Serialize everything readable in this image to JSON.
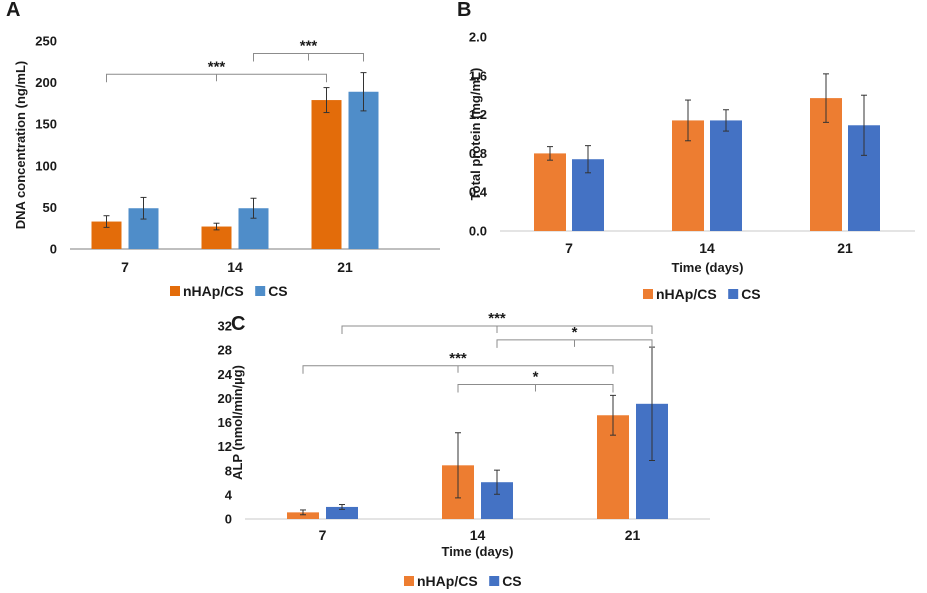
{
  "chart_data": [
    {
      "panel": "A",
      "type": "bar",
      "title": "",
      "xlabel": "",
      "ylabel": "DNA concentration (ng/mL)",
      "ylim": [
        0,
        250
      ],
      "yticks": [
        "0",
        "50",
        "100",
        "150",
        "200",
        "250"
      ],
      "categories": [
        "7",
        "14",
        "21"
      ],
      "grid": false,
      "legend_position": "bottom",
      "series": [
        {
          "name": "nHAp/CS",
          "color": "#E36C0A",
          "values": [
            33,
            27,
            179
          ],
          "errors": [
            7,
            4,
            15
          ]
        },
        {
          "name": "CS",
          "color": "#4F8DC9",
          "values": [
            49,
            49,
            189
          ],
          "errors": [
            13,
            12,
            23
          ]
        }
      ],
      "annotations": [
        {
          "text": "***",
          "from": "14-CS",
          "to": "21-CS",
          "level": 235
        },
        {
          "text": "***",
          "from": "7-nHAp/CS",
          "to": "21-nHAp/CS",
          "level": 210
        }
      ]
    },
    {
      "panel": "B",
      "type": "bar",
      "title": "",
      "xlabel": "Time (days)",
      "ylabel": "Total protein (mg/mL)",
      "ylim": [
        0,
        2.0
      ],
      "yticks": [
        "0.0",
        "0.4",
        "0.8",
        "1.2",
        "1.6",
        "2.0"
      ],
      "categories": [
        "7",
        "14",
        "21"
      ],
      "grid": false,
      "legend_position": "bottom",
      "series": [
        {
          "name": "nHAp/CS",
          "color": "#ED7D31",
          "values": [
            0.8,
            1.14,
            1.37
          ],
          "errors": [
            0.07,
            0.21,
            0.25
          ]
        },
        {
          "name": "CS",
          "color": "#4472C4",
          "values": [
            0.74,
            1.14,
            1.09
          ],
          "errors": [
            0.14,
            0.11,
            0.31
          ]
        }
      ],
      "annotations": []
    },
    {
      "panel": "C",
      "type": "bar",
      "title": "",
      "xlabel": "Time (days)",
      "ylabel": "ALP (nmol/min/µg)",
      "ylim": [
        0,
        32
      ],
      "yticks": [
        "0",
        "4",
        "8",
        "12",
        "16",
        "20",
        "24",
        "28",
        "32"
      ],
      "categories": [
        "7",
        "14",
        "21"
      ],
      "grid": false,
      "legend_position": "bottom",
      "series": [
        {
          "name": "nHAp/CS",
          "color": "#ED7D31",
          "values": [
            1.1,
            8.9,
            17.2
          ],
          "errors": [
            0.4,
            5.4,
            3.3
          ]
        },
        {
          "name": "CS",
          "color": "#4472C4",
          "values": [
            2.0,
            6.1,
            19.1
          ],
          "errors": [
            0.4,
            2.0,
            9.4
          ]
        }
      ],
      "annotations": [
        {
          "text": "***",
          "from": "7-CS",
          "to": "21-CS",
          "level": 32
        },
        {
          "text": "*",
          "from": "14-CS",
          "to": "21-CS",
          "level": 29.7
        },
        {
          "text": "***",
          "from": "7-nHAp/CS",
          "to": "21-nHAp/CS",
          "level": 25.4
        },
        {
          "text": "*",
          "from": "14-nHAp/CS",
          "to": "21-nHAp/CS",
          "level": 22.3
        }
      ]
    }
  ]
}
